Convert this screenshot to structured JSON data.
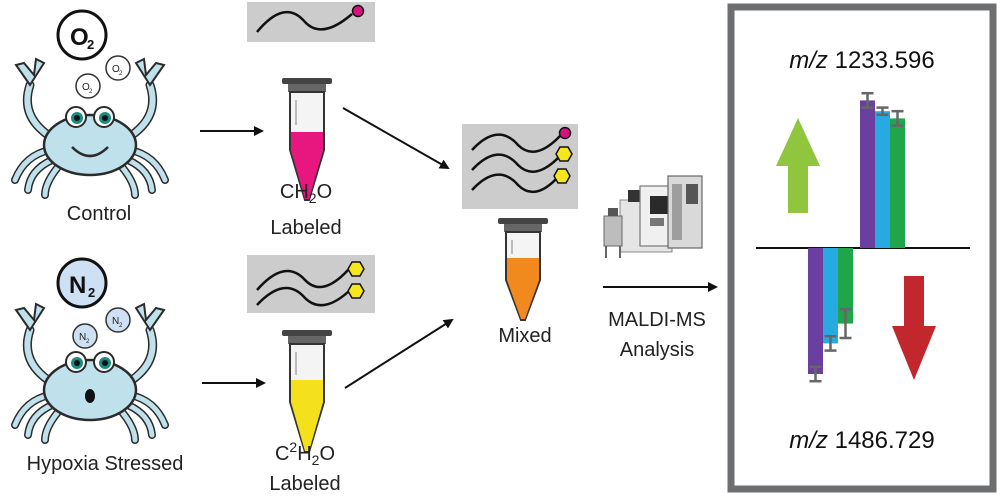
{
  "control": {
    "label": "Control",
    "gas": "O",
    "gas_sub": "2"
  },
  "hypoxia": {
    "label": "Hypoxia Stressed",
    "gas": "N",
    "gas_sub": "2"
  },
  "light_label": {
    "line1_pre": "CH",
    "line1_sub": "2",
    "line1_post": "O",
    "line2": "Labeled"
  },
  "heavy_label": {
    "line1_pre": "C",
    "line1_sup": "2",
    "line1_mid": "H",
    "line1_sub": "2",
    "line1_post": "O",
    "line2": "Labeled"
  },
  "mixed_label": "Mixed",
  "analysis": {
    "line1": "MALDI-MS",
    "line2": "Analysis"
  },
  "colors": {
    "crab_body": "#bfe1ec",
    "light_fill": "#e8177f",
    "heavy_fill": "#f4e11c",
    "mixed_fill": "#f2891e",
    "light_tag": "#d6127e",
    "heavy_tag": "#f5e61d",
    "up_arrow": "#8fc63e",
    "down_arrow": "#c1272d",
    "bar_purple": "#6a3fa0",
    "bar_blue": "#27a9e1",
    "bar_green": "#1fa64a"
  },
  "chart_data": [
    {
      "type": "bar",
      "title_prefix": "m/z",
      "title": "1233.596",
      "direction": "up",
      "series": [
        {
          "value": 0.82,
          "err": 0.04
        },
        {
          "value": 0.76,
          "err": 0.02
        },
        {
          "value": 0.72,
          "err": 0.04
        }
      ]
    },
    {
      "type": "bar",
      "title_prefix": "m/z",
      "title": "1486.729",
      "direction": "down",
      "series": [
        {
          "value": 0.7,
          "err": 0.04
        },
        {
          "value": 0.53,
          "err": 0.04
        },
        {
          "value": 0.42,
          "err": 0.08
        }
      ]
    }
  ]
}
